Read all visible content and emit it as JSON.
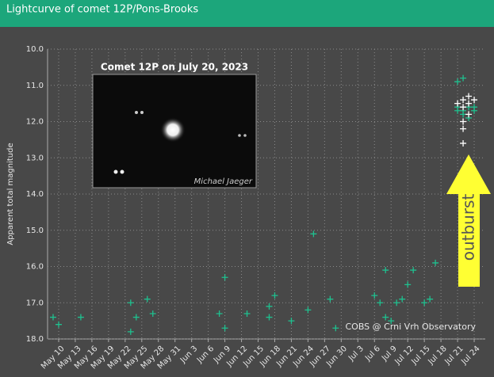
{
  "header": {
    "title": "Lightcurve of comet 12P/Pons-Brooks"
  },
  "chart_data": {
    "type": "scatter",
    "y_label": "Apparent total magnitude",
    "inset_title": "Comet 12P on July 20, 2023",
    "inset_credit": "Michael Jaeger",
    "arrow_label": "outburst",
    "source": "COBS @ Crni Vrh Observatory",
    "xlim": [
      "May 8",
      "Jul 26"
    ],
    "xticks": [
      "May 10",
      "May 13",
      "May 16",
      "May 19",
      "May 22",
      "May 25",
      "May 28",
      "May 31",
      "Jun 3",
      "Jun 6",
      "Jun 9",
      "Jun 12",
      "Jun 15",
      "Jun 18",
      "Jun 21",
      "Jun 24",
      "Jun 27",
      "Jun 30",
      "Jul 3",
      "Jul 6",
      "Jul 9",
      "Jul 12",
      "Jul 15",
      "Jul 18",
      "Jul 21",
      "Jul 24"
    ],
    "ylim": [
      18,
      10
    ],
    "yticks": [
      {
        "value": 10,
        "label": "10.0"
      },
      {
        "value": 11,
        "label": "11.0"
      },
      {
        "value": 12,
        "label": "12.0"
      },
      {
        "value": 13,
        "label": "13.0"
      },
      {
        "value": 14,
        "label": "14.0"
      },
      {
        "value": 15,
        "label": "15.0"
      },
      {
        "value": 16,
        "label": "16.0"
      },
      {
        "value": 17,
        "label": "17.0"
      },
      {
        "value": 18,
        "label": "18.0"
      }
    ],
    "grid": true,
    "series": [
      {
        "color": "#1fc08f",
        "x": [
          "May 9",
          "May 10",
          "May 14",
          "May 23",
          "May 23",
          "May 24",
          "May 26",
          "May 27",
          "Jun 8",
          "Jun 9",
          "Jun 9",
          "Jun 13",
          "Jun 17",
          "Jun 17",
          "Jun 18",
          "Jun 21",
          "Jun 24",
          "Jun 25",
          "Jun 28",
          "Jun 29",
          "Jul 6",
          "Jul 7",
          "Jul 8",
          "Jul 8",
          "Jul 9",
          "Jul 10",
          "Jul 11",
          "Jul 12",
          "Jul 13",
          "Jul 15",
          "Jul 16",
          "Jul 17",
          "Jul 21",
          "Jul 21",
          "Jul 21",
          "Jul 22",
          "Jul 22",
          "Jul 22",
          "Jul 23",
          "Jul 23",
          "Jul 24",
          "Jul 24"
        ],
        "values": [
          17.4,
          17.6,
          17.4,
          17.0,
          17.8,
          17.4,
          16.9,
          17.3,
          17.3,
          16.3,
          17.7,
          17.3,
          17.1,
          17.4,
          16.8,
          17.5,
          17.2,
          15.1,
          16.9,
          17.7,
          16.8,
          17.0,
          16.1,
          17.4,
          17.5,
          17.0,
          16.9,
          16.5,
          16.1,
          17.0,
          16.9,
          15.9,
          11.7,
          11.6,
          10.9,
          10.8,
          11.8,
          11.7,
          11.6,
          11.9,
          11.7,
          11.6
        ]
      },
      {
        "color": "#ffffff",
        "x": [
          "Jul 21",
          "Jul 22",
          "Jul 22",
          "Jul 23",
          "Jul 23",
          "Jul 24",
          "Jul 22",
          "Jul 22",
          "Jul 22",
          "Jul 23"
        ],
        "values": [
          11.5,
          11.4,
          11.6,
          11.5,
          11.3,
          11.4,
          12.0,
          12.2,
          12.6,
          11.8
        ]
      }
    ]
  }
}
